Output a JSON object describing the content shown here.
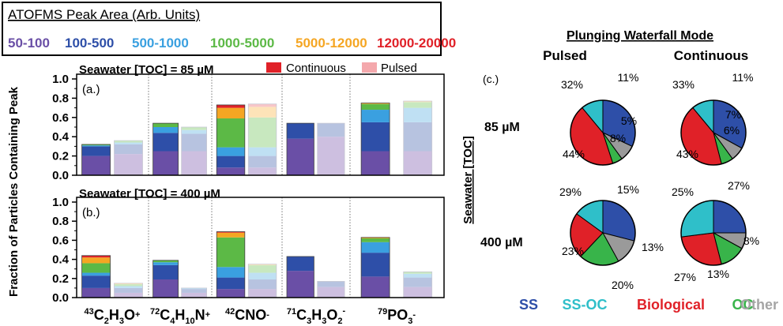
{
  "legend_box": {
    "title": "ATOFMS Peak Area (Arb. Units)",
    "ranges": [
      {
        "label": "50-100",
        "color": "#6a4fa6"
      },
      {
        "label": "100-500",
        "color": "#2e4fa8"
      },
      {
        "label": "500-1000",
        "color": "#3aa0e0"
      },
      {
        "label": "1000-5000",
        "color": "#5cb946"
      },
      {
        "label": "5000-12000",
        "color": "#f5a623"
      },
      {
        "label": "12000-20000",
        "color": "#e02128"
      }
    ]
  },
  "mode_legend": {
    "continuous": "Continuous",
    "pulsed": "Pulsed",
    "continuous_color": "#e02128",
    "pulsed_color": "#f4a8ac"
  },
  "ylabel": "Fraction of Particles Containing Peak",
  "ion_labels": [
    {
      "sup": "43",
      "main": "C",
      "sub1": "2",
      "mid": "H",
      "sub2": "3",
      "end": "O",
      "charge": "+"
    },
    {
      "sup": "72",
      "main": "C",
      "sub1": "4",
      "mid": "H",
      "sub2": "10",
      "end": "N",
      "charge": "+"
    },
    {
      "sup": "42",
      "main": "CNO",
      "sub1": "",
      "mid": "",
      "sub2": "",
      "end": "",
      "charge": "-"
    },
    {
      "sup": "71",
      "main": "C",
      "sub1": "3",
      "mid": "H",
      "sub2": "3",
      "end": "O",
      "sub3": "2",
      "charge": "-"
    },
    {
      "sup": "79",
      "main": "PO",
      "sub1": "3",
      "mid": "",
      "sub2": "",
      "end": "",
      "charge": "-"
    }
  ],
  "chart_data": [
    {
      "type": "bar",
      "stacked": true,
      "panel": "(a.)",
      "title": "Seawater [TOC] = 85 µM",
      "ylim": [
        0,
        1.0
      ],
      "yticks": [
        "0.0",
        "0.2",
        "0.4",
        "0.6",
        "0.8",
        "1.0"
      ],
      "categories": [
        "43C2H3O+",
        "72C4H10N+",
        "42CNO-",
        "71C3H3O2-",
        "79PO3-"
      ],
      "bars": [
        {
          "category": "43C2H3O+",
          "mode": "Continuous",
          "segments": [
            0.2,
            0.1,
            0.01,
            0.01,
            0.0,
            0.0
          ]
        },
        {
          "category": "43C2H3O+",
          "mode": "Pulsed",
          "segments": [
            0.22,
            0.1,
            0.02,
            0.02,
            0.0,
            0.0
          ]
        },
        {
          "category": "72C4H10N+",
          "mode": "Continuous",
          "segments": [
            0.25,
            0.19,
            0.06,
            0.04,
            0.0,
            0.0
          ]
        },
        {
          "category": "72C4H10N+",
          "mode": "Pulsed",
          "segments": [
            0.25,
            0.18,
            0.04,
            0.03,
            0.0,
            0.0
          ]
        },
        {
          "category": "42CNO-",
          "mode": "Continuous",
          "segments": [
            0.08,
            0.12,
            0.09,
            0.3,
            0.11,
            0.03
          ]
        },
        {
          "category": "42CNO-",
          "mode": "Pulsed",
          "segments": [
            0.08,
            0.12,
            0.09,
            0.31,
            0.11,
            0.03
          ]
        },
        {
          "category": "71C3H3O2-",
          "mode": "Continuous",
          "segments": [
            0.38,
            0.16,
            0.0,
            0.0,
            0.0,
            0.0
          ]
        },
        {
          "category": "71C3H3O2-",
          "mode": "Pulsed",
          "segments": [
            0.4,
            0.14,
            0.0,
            0.0,
            0.0,
            0.0
          ]
        },
        {
          "category": "79PO3-",
          "mode": "Continuous",
          "segments": [
            0.25,
            0.3,
            0.13,
            0.06,
            0.01,
            0.0
          ]
        },
        {
          "category": "79PO3-",
          "mode": "Pulsed",
          "segments": [
            0.25,
            0.3,
            0.15,
            0.06,
            0.01,
            0.0
          ]
        }
      ]
    },
    {
      "type": "bar",
      "stacked": true,
      "panel": "(b.)",
      "title": "Seawater [TOC] = 400 µM",
      "ylim": [
        0,
        1.0
      ],
      "yticks": [
        "0.0",
        "0.2",
        "0.4",
        "0.6",
        "0.8",
        "1.0"
      ],
      "categories": [
        "43C2H3O+",
        "72C4H10N+",
        "42CNO-",
        "71C3H3O2-",
        "79PO3-"
      ],
      "bars": [
        {
          "category": "43C2H3O+",
          "mode": "Continuous",
          "segments": [
            0.1,
            0.13,
            0.03,
            0.1,
            0.06,
            0.02
          ]
        },
        {
          "category": "43C2H3O+",
          "mode": "Pulsed",
          "segments": [
            0.05,
            0.05,
            0.02,
            0.02,
            0.01,
            0.0
          ]
        },
        {
          "category": "72C4H10N+",
          "mode": "Continuous",
          "segments": [
            0.19,
            0.15,
            0.03,
            0.02,
            0.0,
            0.0
          ]
        },
        {
          "category": "72C4H10N+",
          "mode": "Pulsed",
          "segments": [
            0.05,
            0.04,
            0.01,
            0.0,
            0.0,
            0.0
          ]
        },
        {
          "category": "42CNO-",
          "mode": "Continuous",
          "segments": [
            0.09,
            0.12,
            0.11,
            0.31,
            0.05,
            0.01
          ]
        },
        {
          "category": "42CNO-",
          "mode": "Pulsed",
          "segments": [
            0.09,
            0.1,
            0.07,
            0.08,
            0.01,
            0.0
          ]
        },
        {
          "category": "71C3H3O2-",
          "mode": "Continuous",
          "segments": [
            0.28,
            0.15,
            0.0,
            0.0,
            0.0,
            0.0
          ]
        },
        {
          "category": "71C3H3O2-",
          "mode": "Pulsed",
          "segments": [
            0.11,
            0.06,
            0.0,
            0.0,
            0.0,
            0.0
          ]
        },
        {
          "category": "79PO3-",
          "mode": "Continuous",
          "segments": [
            0.22,
            0.25,
            0.11,
            0.04,
            0.01,
            0.0
          ]
        },
        {
          "category": "79PO3-",
          "mode": "Pulsed",
          "segments": [
            0.11,
            0.1,
            0.04,
            0.02,
            0.0,
            0.0
          ]
        }
      ]
    },
    {
      "type": "pie",
      "panel": "(c.)",
      "title": "Plunging Waterfall Mode",
      "column_labels": [
        "Pulsed",
        "Continuous"
      ],
      "row_labels": [
        "85 µM",
        "400 µM"
      ],
      "row_axis_label": "Seawater [TOC]",
      "categories": [
        "SS",
        "SS-OC",
        "Biological",
        "OC",
        "Other"
      ],
      "colors": [
        "#2e4fa8",
        "#2fbfc9",
        "#e02128",
        "#38b44a",
        "#9a9a9a"
      ],
      "pies": [
        {
          "toc": "85 µM",
          "mode": "Pulsed",
          "values": [
            32,
            11,
            44,
            5,
            8
          ],
          "labels": [
            "32%",
            "11%",
            "44%",
            "5%",
            "8%"
          ]
        },
        {
          "toc": "85 µM",
          "mode": "Continuous",
          "values": [
            33,
            11,
            43,
            6,
            7
          ],
          "labels": [
            "33%",
            "11%",
            "43%",
            "6%",
            "7%"
          ]
        },
        {
          "toc": "400 µM",
          "mode": "Pulsed",
          "values": [
            29,
            15,
            23,
            20,
            13
          ],
          "labels": [
            "29%",
            "15%",
            "23%",
            "20%",
            "13%"
          ]
        },
        {
          "toc": "400 µM",
          "mode": "Continuous",
          "values": [
            25,
            27,
            27,
            13,
            8
          ],
          "labels": [
            "25%",
            "27%",
            "27%",
            "13%",
            "8%"
          ]
        }
      ]
    }
  ]
}
